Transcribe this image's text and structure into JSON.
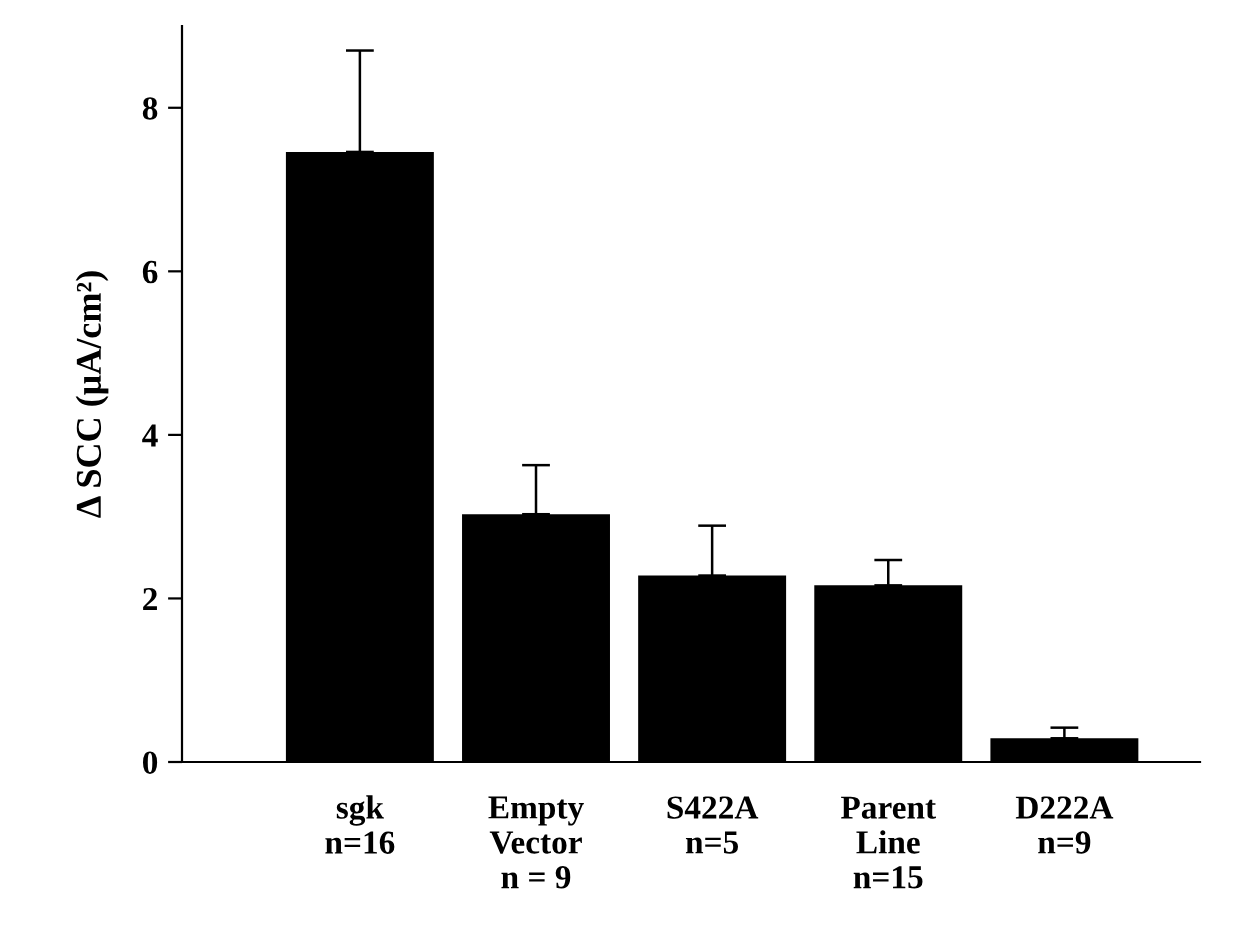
{
  "chart_data": {
    "type": "bar",
    "ylabel": "Δ SCC (μA/cm²)",
    "categories": [
      "sgk\nn=16",
      "Empty\nVector\nn = 9",
      "S422A\nn=5",
      "Parent\nLine\nn=15",
      "D222A\nn=9"
    ],
    "values": [
      7.46,
      3.03,
      2.28,
      2.16,
      0.29
    ],
    "errors": [
      [
        7.46,
        8.7
      ],
      [
        3.03,
        3.63
      ],
      [
        2.28,
        2.89
      ],
      [
        2.16,
        2.47
      ],
      [
        0.29,
        0.42
      ]
    ],
    "color": "#000000",
    "ylim": [
      0,
      9
    ],
    "yticks": [
      0,
      2,
      4,
      6,
      8
    ],
    "grid": false,
    "legend": false
  }
}
